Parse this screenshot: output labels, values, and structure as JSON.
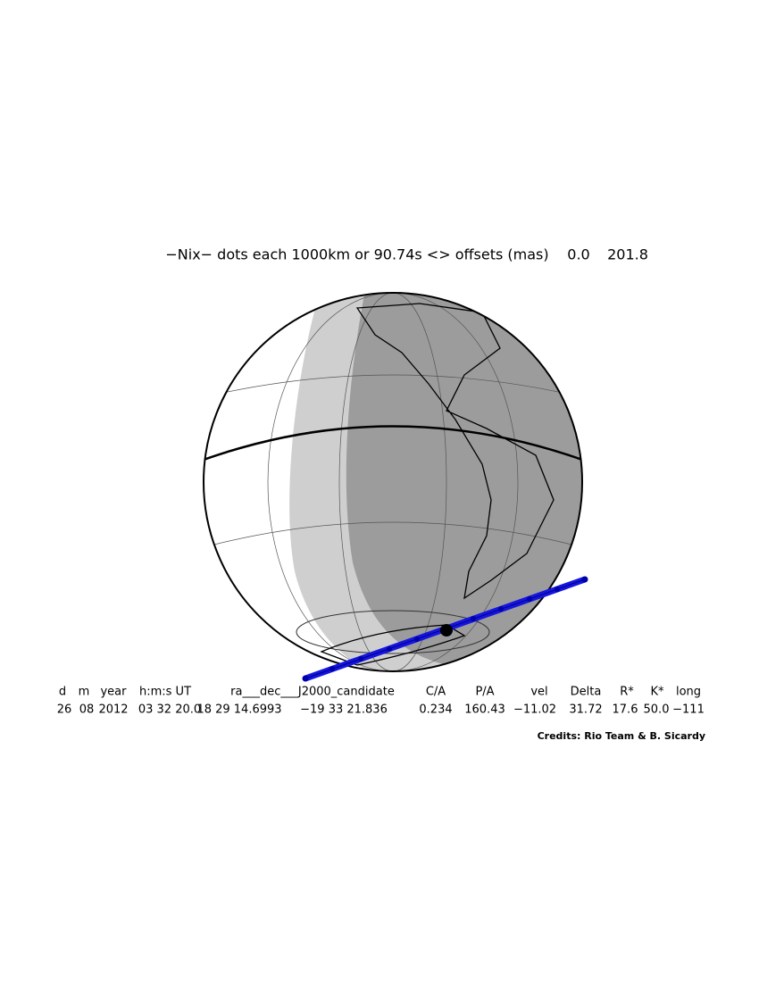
{
  "header": {
    "title": "−Nix− dots each 1000km or 90.74s <> offsets (mas)",
    "offsets": [
      "0.0",
      "201.8"
    ]
  },
  "table": {
    "headers": [
      "d",
      "m",
      "year",
      "h:m:s UT",
      "ra___dec___J2000_candidate",
      "C/A",
      "P/A",
      "vel",
      "Delta",
      "R*",
      "K*",
      "long"
    ],
    "values": [
      "26",
      "08",
      "2012",
      "03 32 20.0",
      "18 29 14.6993",
      "−19 33 21.836",
      "0.234",
      "160.43",
      "−11.02",
      "31.72",
      "17.6",
      "50.0",
      "−111"
    ]
  },
  "credits": "Credits: Rio Team & B. Sicardy"
}
